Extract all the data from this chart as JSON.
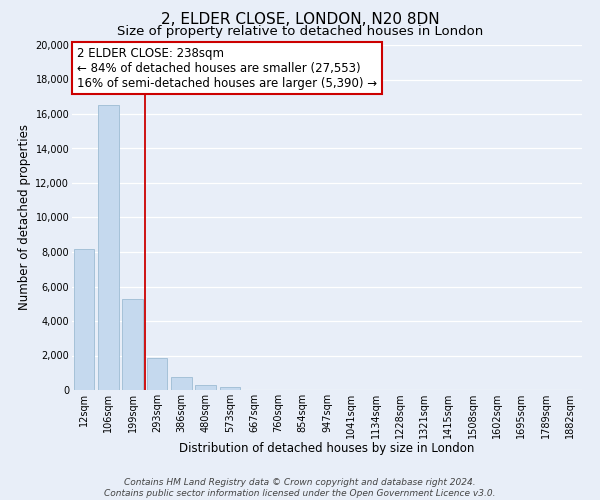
{
  "title": "2, ELDER CLOSE, LONDON, N20 8DN",
  "subtitle": "Size of property relative to detached houses in London",
  "xlabel": "Distribution of detached houses by size in London",
  "ylabel": "Number of detached properties",
  "bar_labels": [
    "12sqm",
    "106sqm",
    "199sqm",
    "293sqm",
    "386sqm",
    "480sqm",
    "573sqm",
    "667sqm",
    "760sqm",
    "854sqm",
    "947sqm",
    "1041sqm",
    "1134sqm",
    "1228sqm",
    "1321sqm",
    "1415sqm",
    "1508sqm",
    "1602sqm",
    "1695sqm",
    "1789sqm",
    "1882sqm"
  ],
  "bar_values": [
    8200,
    16500,
    5300,
    1850,
    750,
    280,
    200,
    0,
    0,
    0,
    0,
    0,
    0,
    0,
    0,
    0,
    0,
    0,
    0,
    0,
    0
  ],
  "bar_color": "#c5d9ee",
  "bar_edge_color": "#9dbcd4",
  "vline_color": "#cc0000",
  "ylim": [
    0,
    20000
  ],
  "yticks": [
    0,
    2000,
    4000,
    6000,
    8000,
    10000,
    12000,
    14000,
    16000,
    18000,
    20000
  ],
  "annotation_title": "2 ELDER CLOSE: 238sqm",
  "annotation_line1": "← 84% of detached houses are smaller (27,553)",
  "annotation_line2": "16% of semi-detached houses are larger (5,390) →",
  "annotation_box_color": "#ffffff",
  "annotation_box_edge": "#cc0000",
  "footer_line1": "Contains HM Land Registry data © Crown copyright and database right 2024.",
  "footer_line2": "Contains public sector information licensed under the Open Government Licence v3.0.",
  "background_color": "#e8eef8",
  "grid_color": "#ffffff",
  "title_fontsize": 11,
  "subtitle_fontsize": 9.5,
  "xlabel_fontsize": 8.5,
  "ylabel_fontsize": 8.5,
  "tick_fontsize": 7,
  "annotation_fontsize": 8.5,
  "footer_fontsize": 6.5
}
